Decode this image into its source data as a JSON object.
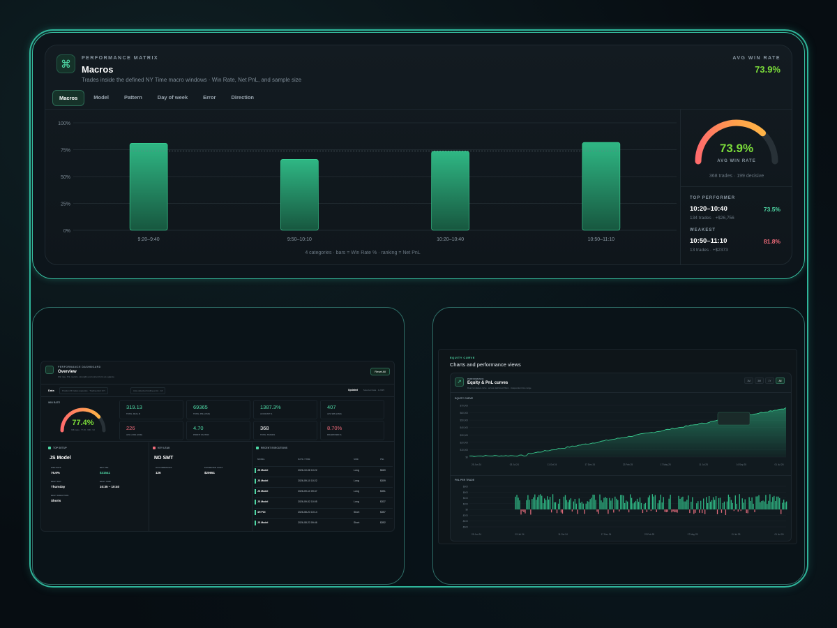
{
  "top": {
    "kicker": "PERFORMANCE MATRIX",
    "title": "Macros",
    "subtitle": "Trades inside the defined NY Time macro windows · Win Rate, Net PnL, and sample size",
    "avg_label": "AVG WIN RATE",
    "avg_value": "73.9%",
    "icon": "command-icon",
    "tabs": [
      "Macros",
      "Model",
      "Pattern",
      "Day of week",
      "Error",
      "Direction"
    ],
    "active_tab": "Macros",
    "caption": "4 categories · bars = Win Rate % · ranking = Net PnL",
    "gauge": {
      "value": "73.9%",
      "label": "AVG WIN RATE",
      "sub": "368 trades · 199 decisive",
      "fraction": 0.739
    },
    "top_performer": {
      "label": "TOP PERFORMER",
      "name": "10:20–10:40",
      "meta": "134 trades · +$26,756",
      "pct": "73.5%"
    },
    "weakest": {
      "label": "WEAKEST",
      "name": "10:50–11:10",
      "meta": "13 trades · +$2373",
      "pct": "81.8%"
    }
  },
  "chart_data": {
    "type": "bar",
    "categories": [
      "9:20–9:40",
      "9:50–10:10",
      "10:20–10:40",
      "10:50–11:10"
    ],
    "values": [
      81,
      66,
      73.5,
      81.8
    ],
    "y_ticks": [
      "100%",
      "75%",
      "50%",
      "25%",
      "0%"
    ],
    "ylim": [
      0,
      100
    ],
    "reference_line": 73.9,
    "grid": true
  },
  "overview": {
    "kicker": "PERFORMANCE DASHBOARD",
    "title": "Overview",
    "subtitle": "Win rate, PnL metrics, strengths and current form at a glance",
    "button": "Reset All",
    "filter_label": "Data",
    "filter_a": "Position fill trades (opposite · Trading Hub 1/7)",
    "filter_b": "Auto-detected trading entry · All",
    "updated_label": "Updated",
    "updated_val": "Selected data · 1.2025",
    "winrate_label": "WIN RATE",
    "gauge_value": "77.4%",
    "gauge_fraction": 0.774,
    "gauge_sub": "368 trades · 77.1% · WIN · 9.6",
    "stats": [
      {
        "value": "319.13",
        "label": "TOTAL REAL R",
        "color": "#4fd9a6"
      },
      {
        "value": "69365",
        "label": "TOTAL PNL (USD)",
        "color": "#4fd9a6"
      },
      {
        "value": "1387.3%",
        "label": "ACCOUNT %",
        "color": "#4fd9a6"
      },
      {
        "value": "407",
        "label": "AVG WIN (USD)",
        "color": "#4fd9a6"
      },
      {
        "value": "226",
        "label": "AVG LOSS (USD)",
        "color": "#f06b7a"
      },
      {
        "value": "4.70",
        "label": "PROFIT FACTOR",
        "color": "#4fd9a6"
      },
      {
        "value": "368",
        "label": "TOTAL TRADES",
        "color": "#ffffff"
      },
      {
        "value": "8.70%",
        "label": "DRAWDOWN %",
        "color": "#f06b7a"
      }
    ],
    "top_setup": {
      "label": "TOP SETUP",
      "name": "JS Model",
      "fields": [
        {
          "k": "WIN RATE",
          "v": "76.6%"
        },
        {
          "k": "NET PNL",
          "v": "$31541"
        },
        {
          "k": "BEST DAY",
          "v": "Thursday"
        },
        {
          "k": "BEST TIME",
          "v": "10:35 – 10:40"
        },
        {
          "k": "BEST DIRECTION",
          "v": "Shorts"
        }
      ]
    },
    "key_leak": {
      "label": "KEY LEAK",
      "name": "NO SMT",
      "fields": [
        {
          "k": "OCCURRENCES",
          "v": "126"
        },
        {
          "k": "ESTIMATED COST",
          "v": "$20651"
        }
      ]
    },
    "recent": {
      "label": "RECENT EXECUTIONS",
      "headers": [
        "MODEL",
        "DATE / TIME",
        "SIDE",
        "PNL"
      ],
      "rows": [
        [
          "JS Model",
          "2026-10-08 10:22",
          "Long",
          "$669"
        ],
        [
          "JS Model",
          "2026-09-10 10:22",
          "Long",
          "$309"
        ],
        [
          "JS Model",
          "2026-09-10 09:47",
          "Long",
          "$351"
        ],
        [
          "JS Model",
          "2026-09-02 10:05",
          "Long",
          "$337"
        ],
        [
          "4H POI",
          "2026-08-23 10:14",
          "Short",
          "$357"
        ],
        [
          "JS Model",
          "2026-08-23 09:46",
          "Short",
          "$352"
        ]
      ]
    }
  },
  "curves": {
    "kicker": "EQUITY CURVE",
    "title": "Charts and performance views",
    "panel_kicker": "PERFORMANCE",
    "panel_title": "Equity & PnL curves",
    "panel_sub": "Real cumulative curve · across dashboard filters · independent time range",
    "ranges": [
      "1M",
      "3M",
      "1Y",
      "All"
    ],
    "active_range": "All",
    "equity_label": "EQUITY CURVE",
    "equity_ticks": [
      "$70,000",
      "$60,000",
      "$50,000",
      "$40,000",
      "$30,000",
      "$20,000",
      "$10,000",
      "$0"
    ],
    "x_ticks": [
      "25 Jun 24",
      "03 Jul 24",
      "11 Oct 24",
      "17 Dec 24",
      "23 Feb 25",
      "17 May 25",
      "11 Jul 25",
      "14 Sep 25",
      "01 Jul 26"
    ],
    "pnl_label": "PNL PER TRADE",
    "pnl_ticks": [
      "$800",
      "$600",
      "$400",
      "$200",
      "$0",
      "-$200",
      "-$400",
      "-$600"
    ],
    "pnl_x_ticks": [
      "25 Jun 24",
      "03 Jul 24",
      "11 Oct 24",
      "17 Dec 24",
      "23 Feb 25",
      "17 May 25",
      "11 Jul 25",
      "01 Jul 26"
    ]
  }
}
